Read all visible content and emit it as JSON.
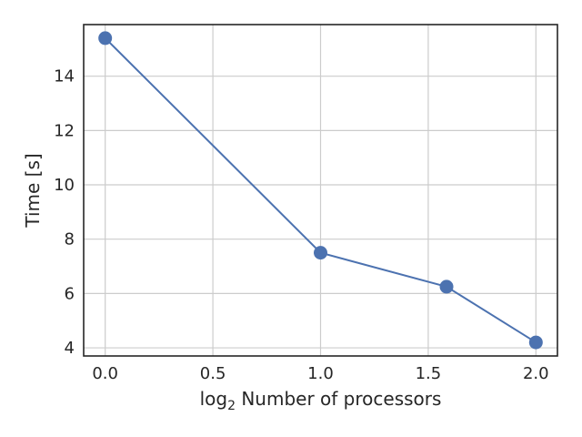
{
  "chart_data": {
    "type": "line",
    "xlabel_base": "log",
    "xlabel_sub": "2",
    "xlabel_rest": " Number of processors",
    "ylabel": "Time [s]",
    "xlim": [
      -0.1,
      2.1
    ],
    "ylim": [
      3.7,
      15.9
    ],
    "x_ticks": [
      0.0,
      0.5,
      1.0,
      1.5,
      2.0
    ],
    "x_tick_labels": [
      "0.0",
      "0.5",
      "1.0",
      "1.5",
      "2.0"
    ],
    "y_ticks": [
      4,
      6,
      8,
      10,
      12,
      14
    ],
    "y_tick_labels": [
      "4",
      "6",
      "8",
      "10",
      "12",
      "14"
    ],
    "grid": true,
    "series": [
      {
        "x": [
          0.0,
          1.0,
          1.585,
          2.0
        ],
        "y": [
          15.4,
          7.5,
          6.25,
          4.2
        ],
        "color": "#4c72b0",
        "marker": "circle"
      }
    ]
  }
}
